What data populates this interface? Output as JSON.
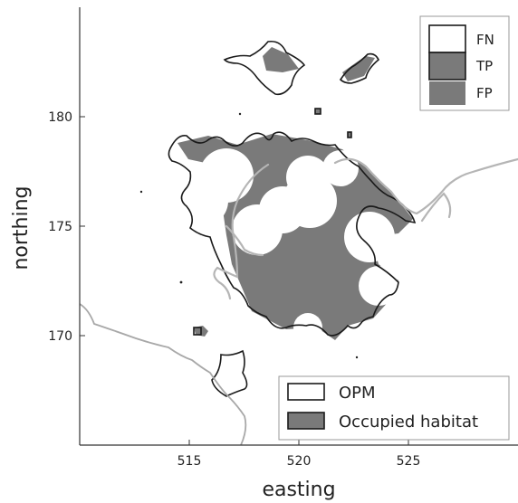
{
  "chart_data": {
    "type": "map",
    "xlabel": "easting",
    "ylabel": "northing",
    "xlim": [
      510,
      530
    ],
    "ylim": [
      165,
      185
    ],
    "xticks": [
      {
        "value": 515,
        "label": "515"
      },
      {
        "value": 520,
        "label": "520"
      },
      {
        "value": 525,
        "label": "525"
      }
    ],
    "yticks": [
      {
        "value": 170,
        "label": "170"
      },
      {
        "value": 175,
        "label": "175"
      },
      {
        "value": 180,
        "label": "180"
      }
    ],
    "legend_top": {
      "position": "top-right",
      "entries": [
        {
          "label": "FN",
          "fill": "#ffffff",
          "outline": true
        },
        {
          "label": "TP",
          "fill": "#7a7a7a",
          "outline": true
        },
        {
          "label": "FP",
          "fill": "#7a7a7a",
          "outline": false
        }
      ]
    },
    "legend_bottom": {
      "position": "bottom-right",
      "entries": [
        {
          "label": "OPM",
          "fill": "#ffffff",
          "outline": true
        },
        {
          "label": "Occupied habitat",
          "fill": "#7a7a7a",
          "outline": true
        }
      ]
    }
  },
  "colors": {
    "occupied_fill": "#7a7a7a",
    "outline": "#1a1a1a",
    "river": "#b5b5b5",
    "boundary": "#a8a8a8",
    "axis": "#333333"
  }
}
